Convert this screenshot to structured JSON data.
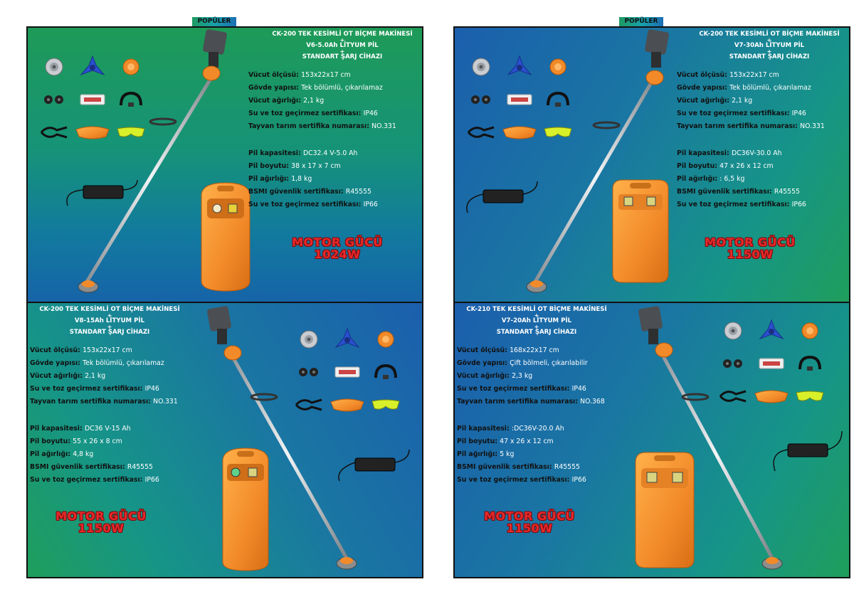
{
  "badge_label": "POPÜLER",
  "colors": {
    "accent_orange": "#f28a2a",
    "power_red": "#e8282b",
    "spec_key": "#111111",
    "spec_value": "#ffffff"
  },
  "icons": [
    "blade-disc-icon",
    "tri-blade-icon",
    "orange-disc-icon",
    "spool-icon",
    "parts-pack-icon",
    "strap-icon",
    "clamp-icon",
    "guard-icon",
    "goggles-icon",
    "trimmer-icon",
    "battery-pack-icon",
    "charger-icon"
  ],
  "products": [
    {
      "title_line1": "CK-200 TEK KESİMLİ OT BİÇME MAKİNESİ",
      "plus": "+",
      "title_line2": "V6-5.0Ah LİTYUM PİL",
      "title_line3": "STANDART ŞARJ CİHAZI",
      "body_specs": [
        {
          "k": "Vücut ölçüsü: ",
          "v": "153x22x17 cm"
        },
        {
          "k": "Gövde yapısı: ",
          "v": "Tek bölümlü, çıkarılamaz"
        },
        {
          "k": "Vücut ağırlığı: ",
          "v": "2,1 kg"
        },
        {
          "k": "Su ve toz geçirmez sertifikası: ",
          "v": "IP46"
        },
        {
          "k": "Tayvan tarım sertifika numarası: ",
          "v": "NO.331"
        }
      ],
      "battery_specs": [
        {
          "k": "Pil kapasitesi: ",
          "v": "DC32.4 V-5.0 Ah"
        },
        {
          "k": "Pil boyutu: ",
          "v": "38 x 17 x 7 cm"
        },
        {
          "k": "Pil ağırlığı: ",
          "v": "1,8 kg"
        },
        {
          "k": "BSMI güvenlik sertifikası: ",
          "v": "R45555"
        },
        {
          "k": "Su ve toz geçirmez sertifikası: ",
          "v": "IP66"
        }
      ],
      "power_label": "MOTOR GÜCÜ",
      "power_value": "1024W"
    },
    {
      "title_line1": "CK-200 TEK KESİMLİ OT BİÇME MAKİNESİ",
      "plus": "+",
      "title_line2": "V7-30Ah LİTYUM PİL",
      "title_line3": "STANDART ŞARJ CİHAZI",
      "body_specs": [
        {
          "k": "Vücut ölçüsü: ",
          "v": "153x22x17 cm"
        },
        {
          "k": "Gövde yapısı: ",
          "v": "Tek bölümlü, çıkarılamaz"
        },
        {
          "k": "Vücut ağırlığı: ",
          "v": "2,1 kg"
        },
        {
          "k": "Su ve toz geçirmez sertifikası: ",
          "v": "IP46"
        },
        {
          "k": "Tayvan tarım sertifika numarası: ",
          "v": "NO.331"
        }
      ],
      "battery_specs": [
        {
          "k": "Pil kapasitesi: ",
          "v": "DC36V-30.0 Ah"
        },
        {
          "k": "Pil boyutu: ",
          "v": "47 x 26 x 12 cm"
        },
        {
          "k": "Pil ağırlığı: ",
          "v": ": 6,5 kg"
        },
        {
          "k": "BSMI güvenlik sertifikası: ",
          "v": "R45555"
        },
        {
          "k": "Su ve toz geçirmez sertifikası: ",
          "v": "IP66"
        }
      ],
      "power_label": "MOTOR GÜCÜ",
      "power_value": "1150W"
    },
    {
      "title_line1": "CK-200 TEK KESİMLİ OT BİÇME MAKİNESİ",
      "plus": "+",
      "title_line2": "V8-15Ah LİTYUM PİL",
      "title_line3": "STANDART ŞARJ CİHAZI",
      "body_specs": [
        {
          "k": "Vücut ölçüsü: ",
          "v": "153x22x17 cm"
        },
        {
          "k": "Gövde yapısı: ",
          "v": "Tek bölümlü, çıkarılamaz"
        },
        {
          "k": "Vücut ağırlığı: ",
          "v": "2,1 kg"
        },
        {
          "k": "Su ve toz geçirmez sertifikası: ",
          "v": "IP46"
        },
        {
          "k": "Tayvan tarım sertifika numarası: ",
          "v": "NO.331"
        }
      ],
      "battery_specs": [
        {
          "k": "Pil kapasitesi: ",
          "v": "DC36 V-15 Ah"
        },
        {
          "k": "Pil boyutu: ",
          "v": "55 x 26 x 8 cm"
        },
        {
          "k": "Pil ağırlığı: ",
          "v": "4,8 kg"
        },
        {
          "k": "BSMI güvenlik sertifikası: ",
          "v": "R45555"
        },
        {
          "k": "Su ve toz geçirmez sertifikası: ",
          "v": "IP66"
        }
      ],
      "power_label": "MOTOR GÜCÜ",
      "power_value": "1150W"
    },
    {
      "title_line1": "CK-210 TEK KESİMLİ OT BİÇME MAKİNESİ",
      "plus": "+",
      "title_line2": "V7-20Ah LİTYUM PİL",
      "title_line3": "STANDART ŞARJ CİHAZI",
      "body_specs": [
        {
          "k": "Vücut ölçüsü: ",
          "v": "168x22x17 cm"
        },
        {
          "k": "Gövde yapısı: ",
          "v": "Çift bölmeli, çıkarılabilir"
        },
        {
          "k": "Vücut ağırlığı: ",
          "v": "2,3 kg"
        },
        {
          "k": "Su ve toz geçirmez sertifikası: ",
          "v": "IP46"
        },
        {
          "k": "Tayvan tarım sertifika numarası: ",
          "v": "NO.368"
        }
      ],
      "battery_specs": [
        {
          "k": "Pil kapasitesi: ",
          "v": ":DC36V-20.0 Ah"
        },
        {
          "k": "Pil boyutu: ",
          "v": "47 x 26 x 12 cm"
        },
        {
          "k": "Pil ağırlığı: ",
          "v": "5 kg"
        },
        {
          "k": "BSMI güvenlik sertifikası: ",
          "v": "R45555"
        },
        {
          "k": "Su ve toz geçirmez sertifikası: ",
          "v": "IP66"
        }
      ],
      "power_label": "MOTOR GÜCÜ",
      "power_value": "1150W"
    }
  ]
}
